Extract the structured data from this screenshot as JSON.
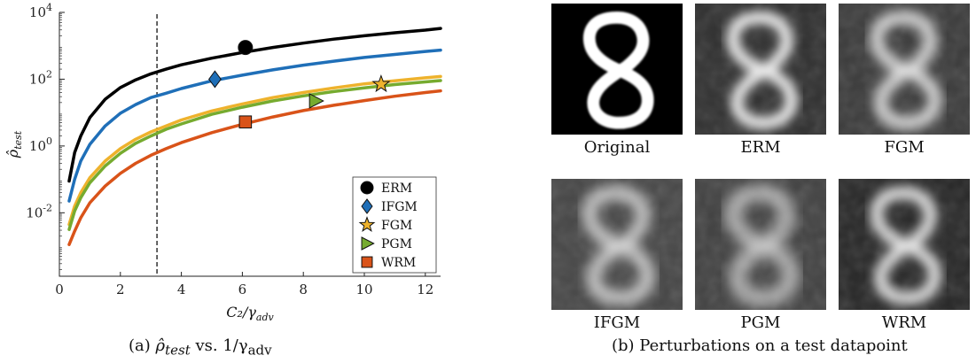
{
  "chart_data": {
    "type": "line",
    "xlabel": "C₂/γ",
    "xlabel_sub": "adv",
    "ylabel": "ρ̂",
    "ylabel_sub": "test",
    "xlim": [
      0,
      12.5
    ],
    "ylim_log10": [
      -3.9,
      4
    ],
    "y_scale": "log",
    "x_ticks": [
      0,
      2,
      4,
      6,
      8,
      10,
      12
    ],
    "y_ticks": [
      {
        "exp": -2,
        "label": "10",
        "sup": "-2"
      },
      {
        "exp": 0,
        "label": "10",
        "sup": "0"
      },
      {
        "exp": 2,
        "label": "10",
        "sup": "2"
      },
      {
        "exp": 4,
        "label": "10",
        "sup": "4"
      }
    ],
    "grid": false,
    "legend_position": "bottom-right",
    "vline_x": 3.2,
    "series": [
      {
        "name": "ERM",
        "color": "#000000",
        "marker": "circle",
        "x": [
          0.32,
          0.5,
          0.7,
          1.0,
          1.5,
          2.0,
          2.5,
          3.0,
          3.5,
          4.0,
          5.0,
          6.0,
          7.0,
          8.0,
          9.0,
          10.0,
          11.0,
          12.0,
          12.5
        ],
        "y_log10": [
          -1.05,
          -0.2,
          0.3,
          0.85,
          1.4,
          1.75,
          1.98,
          2.16,
          2.3,
          2.43,
          2.63,
          2.8,
          2.95,
          3.08,
          3.2,
          3.3,
          3.39,
          3.47,
          3.52
        ],
        "marker_x": 6.1,
        "marker_y_log10": 2.95
      },
      {
        "name": "IFGM",
        "color": "#1f6fb8",
        "marker": "diamond",
        "x": [
          0.32,
          0.5,
          0.7,
          1.0,
          1.5,
          2.0,
          2.5,
          3.0,
          3.5,
          4.0,
          5.0,
          6.0,
          7.0,
          8.0,
          9.0,
          10.0,
          11.0,
          12.0,
          12.5
        ],
        "y_log10": [
          -1.65,
          -1.0,
          -0.45,
          0.05,
          0.6,
          0.98,
          1.24,
          1.45,
          1.58,
          1.72,
          1.95,
          2.12,
          2.28,
          2.42,
          2.54,
          2.65,
          2.74,
          2.83,
          2.87
        ],
        "marker_x": 5.1,
        "marker_y_log10": 2.0
      },
      {
        "name": "FGM",
        "color": "#eeb22c",
        "marker": "star",
        "x": [
          0.32,
          0.5,
          0.7,
          1.0,
          1.5,
          2.0,
          2.5,
          3.0,
          3.5,
          4.0,
          5.0,
          6.0,
          7.0,
          8.0,
          9.0,
          10.0,
          11.0,
          12.0,
          12.5
        ],
        "y_log10": [
          -2.35,
          -1.8,
          -1.4,
          -0.95,
          -0.45,
          -0.08,
          0.2,
          0.42,
          0.6,
          0.78,
          1.05,
          1.26,
          1.45,
          1.6,
          1.74,
          1.86,
          1.95,
          2.04,
          2.08
        ],
        "marker_x": 10.55,
        "marker_y_log10": 1.85
      },
      {
        "name": "PGM",
        "color": "#76ab2f",
        "marker": "triangle",
        "x": [
          0.32,
          0.5,
          0.7,
          1.0,
          1.5,
          2.0,
          2.5,
          3.0,
          3.5,
          4.0,
          5.0,
          6.0,
          7.0,
          8.0,
          9.0,
          10.0,
          11.0,
          12.0,
          12.5
        ],
        "y_log10": [
          -2.5,
          -1.95,
          -1.55,
          -1.1,
          -0.6,
          -0.22,
          0.08,
          0.3,
          0.5,
          0.66,
          0.95,
          1.16,
          1.35,
          1.5,
          1.63,
          1.74,
          1.84,
          1.92,
          1.96
        ],
        "marker_x": 8.4,
        "marker_y_log10": 1.35
      },
      {
        "name": "WRM",
        "color": "#d95319",
        "marker": "square",
        "x": [
          0.32,
          0.5,
          0.7,
          1.0,
          1.5,
          2.0,
          2.5,
          3.0,
          3.5,
          4.0,
          5.0,
          6.0,
          7.0,
          8.0,
          9.0,
          10.0,
          11.0,
          12.0,
          12.5
        ],
        "y_log10": [
          -2.95,
          -2.55,
          -2.15,
          -1.7,
          -1.2,
          -0.82,
          -0.52,
          -0.28,
          -0.08,
          0.1,
          0.4,
          0.65,
          0.87,
          1.06,
          1.22,
          1.36,
          1.49,
          1.6,
          1.65
        ],
        "marker_x": 6.1,
        "marker_y_log10": 0.72
      }
    ]
  },
  "captions": {
    "a": {
      "prefix": "(a)",
      "rho": "ρ̂",
      "sub": "test",
      "mid": " vs. 1/γ",
      "sub2": "adv"
    },
    "b": "(b) Perturbations on a test datapoint"
  },
  "gallery": {
    "tiles": [
      {
        "label": "Original",
        "bg": "#000000",
        "fg": "#ffffff",
        "blur": 0.2
      },
      {
        "label": "ERM",
        "bg": "#2f2f2f",
        "fg": "#ededed",
        "blur": 1.1
      },
      {
        "label": "FGM",
        "bg": "#3a3a3a",
        "fg": "#e6e6e6",
        "blur": 1.3
      },
      {
        "label": "IFGM",
        "bg": "#454545",
        "fg": "#dcdcdc",
        "blur": 1.4
      },
      {
        "label": "PGM",
        "bg": "#404040",
        "fg": "#d8d8d8",
        "blur": 1.6
      },
      {
        "label": "WRM",
        "bg": "#262626",
        "fg": "#e8e8e8",
        "blur": 1.2
      }
    ]
  }
}
